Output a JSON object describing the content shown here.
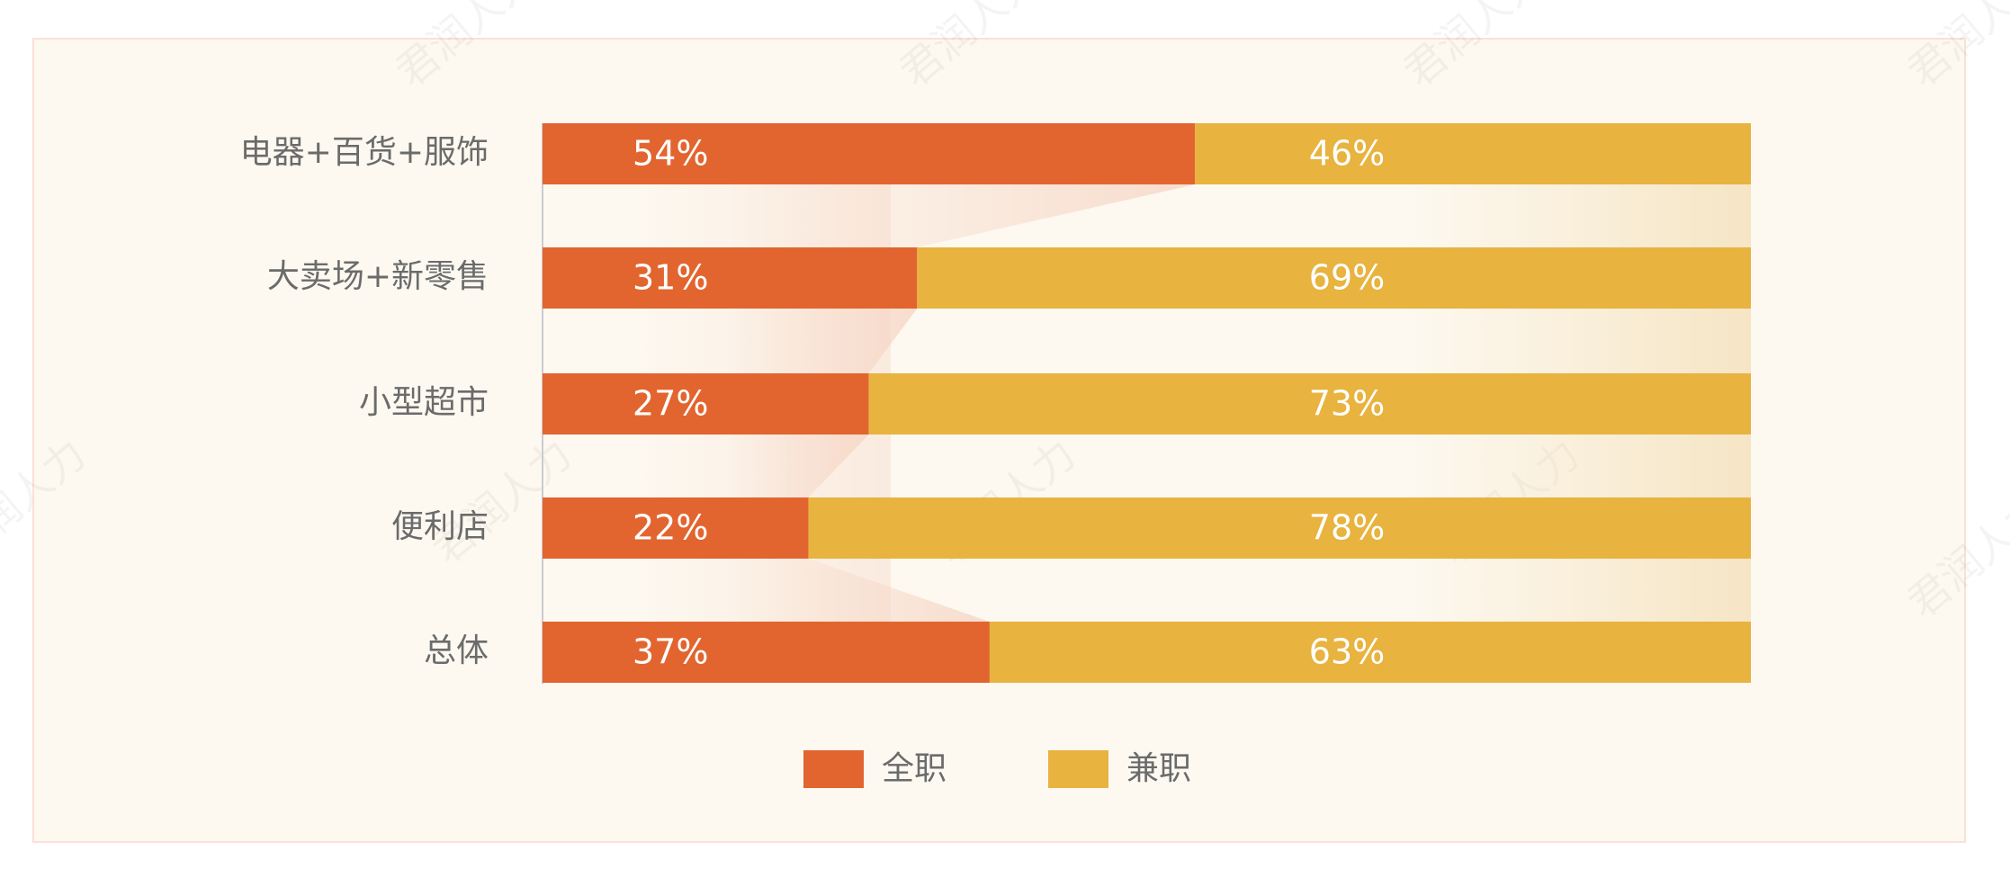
{
  "chart_data": {
    "type": "stacked_barh",
    "watermark": "君润人力",
    "categories": [
      "电器+百货+服饰",
      "大卖场+新零售",
      "小型超市",
      "便利店",
      "总体"
    ],
    "series": [
      {
        "name": "全职",
        "color": "#e2652f",
        "values": [
          54,
          31,
          27,
          22,
          37
        ],
        "value_labels": [
          "54%",
          "31%",
          "27%",
          "22%",
          "37%"
        ]
      },
      {
        "name": "兼职",
        "color": "#e8b33e",
        "values": [
          46,
          69,
          73,
          78,
          63
        ],
        "value_labels": [
          "46%",
          "69%",
          "73%",
          "78%",
          "63%"
        ]
      }
    ],
    "xlim": [
      0,
      100
    ]
  }
}
